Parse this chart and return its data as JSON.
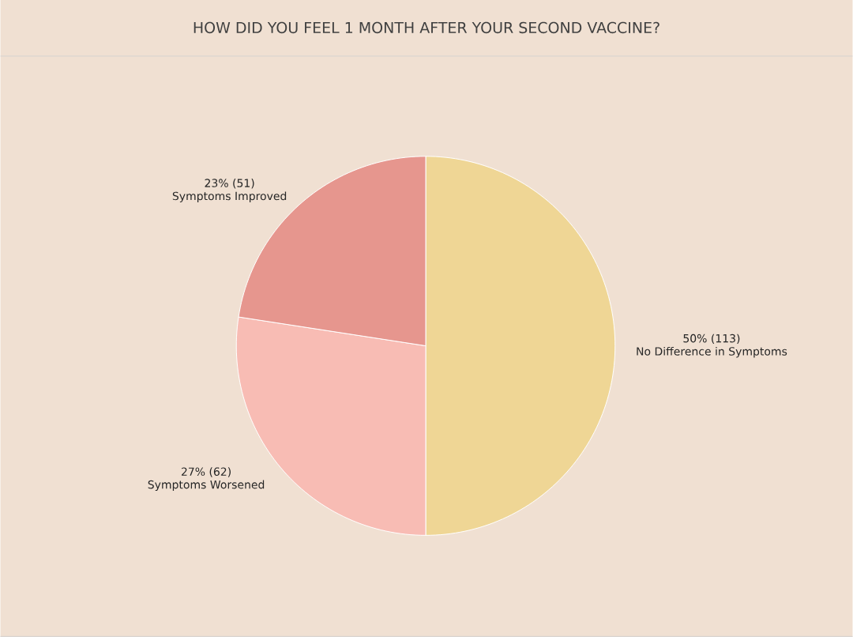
{
  "chart_data": {
    "type": "pie",
    "title": "HOW DID YOU FEEL 1 MONTH AFTER YOUR SECOND VACCINE?",
    "categories": [
      "No Difference in Symptoms",
      "Symptoms Worsened",
      "Symptoms Improved"
    ],
    "values": [
      113,
      62,
      51
    ],
    "value_labels": [
      "50% (113)",
      "27% (62)",
      "23% (51)"
    ],
    "colors": [
      "#efd695",
      "#f8bcb4",
      "#e6968e"
    ]
  }
}
